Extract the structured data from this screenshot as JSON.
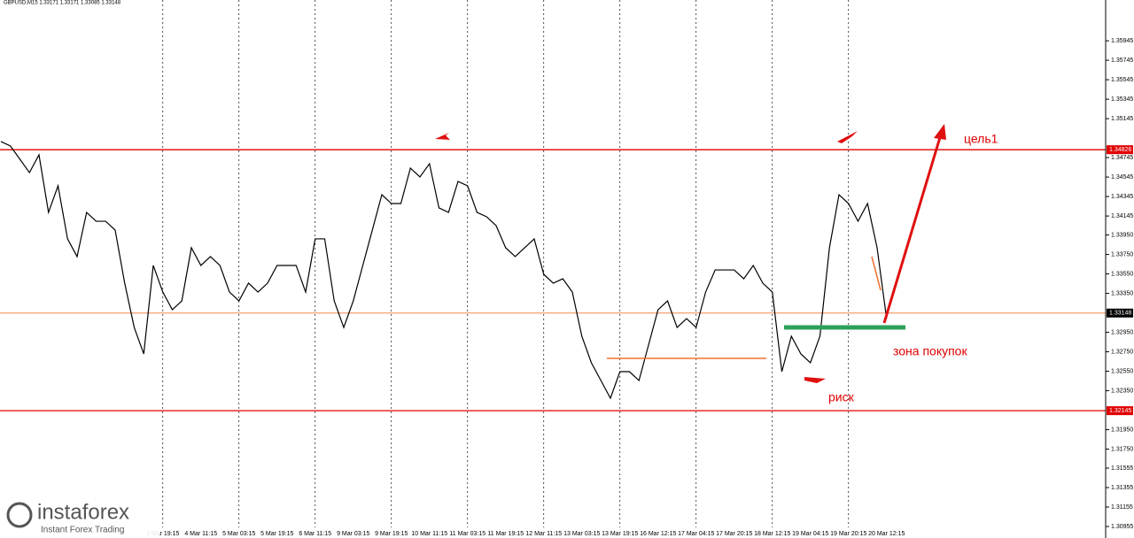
{
  "chart_data": {
    "type": "line",
    "title": "GBPUSD,M15  1.33171 1.33171 1.33085 1.33148",
    "watermark": "instaforex",
    "watermark_sub": "Instant Forex Trading",
    "annotations": {
      "target": "цель1",
      "buy_zone": "зона покупок",
      "risk": "риск"
    },
    "categories": [
      null,
      null,
      null,
      null,
      null,
      null,
      null,
      null,
      null,
      null,
      null,
      null,
      null,
      null,
      null,
      null,
      null,
      "3 Mar 19:15",
      null,
      null,
      null,
      "4 Mar 11:15",
      null,
      null,
      null,
      "5 Mar 03:15",
      null,
      null,
      null,
      "5 Mar 19:15",
      null,
      null,
      null,
      "6 Mar 11:15",
      null,
      null,
      null,
      "9 Mar 03:15",
      null,
      null,
      null,
      "9 Mar 19:15",
      null,
      null,
      null,
      "10 Mar 11:15",
      null,
      null,
      null,
      "11 Mar 03:15",
      null,
      null,
      null,
      "11 Mar 19:15",
      null,
      null,
      null,
      "12 Mar 11:15",
      null,
      null,
      null,
      "13 Mar 03:15",
      null,
      null,
      null,
      "13 Mar 19:15",
      null,
      null,
      null,
      "16 Mar 12:15",
      null,
      null,
      null,
      "17 Mar 04:15",
      null,
      null,
      null,
      "17 Mar 20:15",
      null,
      null,
      null,
      "18 Mar 12:15",
      null,
      null,
      null,
      "19 Mar 04:15",
      null,
      null,
      null,
      "19 Mar 20:15",
      null,
      null,
      null,
      "20 Mar 12:15"
    ],
    "series": [
      {
        "name": "GBPUSD",
        "color": "#000000",
        "values": [
          1.3491,
          1.34864,
          1.34728,
          1.34591,
          1.34773,
          1.34182,
          1.34455,
          1.3391,
          1.33728,
          1.34182,
          1.34091,
          1.34091,
          1.34,
          1.33455,
          1.33,
          1.32728,
          1.33637,
          1.33364,
          1.33182,
          1.33273,
          1.33819,
          1.33637,
          1.33728,
          1.33637,
          1.33364,
          1.33273,
          1.33455,
          1.33364,
          1.33455,
          1.33637,
          1.33637,
          1.33637,
          1.33364,
          1.3391,
          1.3391,
          1.33273,
          1.33,
          1.33273,
          1.33637,
          1.34,
          1.34364,
          1.34273,
          1.34273,
          1.34637,
          1.34546,
          1.34682,
          1.34228,
          1.34182,
          1.345,
          1.34455,
          1.34182,
          1.34137,
          1.34046,
          1.33819,
          1.33728,
          1.33819,
          1.3391,
          1.33546,
          1.33455,
          1.335,
          1.33364,
          1.3291,
          1.32637,
          1.32455,
          1.32273,
          1.32546,
          1.32546,
          1.32455,
          1.32819,
          1.33182,
          1.33273,
          1.33,
          1.33091,
          1.33,
          1.33364,
          1.33591,
          1.33591,
          1.33591,
          1.335,
          1.33637,
          1.33455,
          1.33364,
          1.32546,
          1.3291,
          1.32728,
          1.32637,
          1.3291,
          1.33819,
          1.34364,
          1.34273,
          1.34091,
          1.34273,
          1.33819,
          1.33091
        ]
      }
    ],
    "levels": [
      {
        "value": 1.34826,
        "color": "#e00000",
        "label_fill": "#e00000"
      },
      {
        "value": 1.33148,
        "color": "#f0a070",
        "label_fill": "#000000"
      },
      {
        "value": 1.32145,
        "color": "#e00000",
        "label_fill": "#e00000"
      }
    ],
    "ylim": [
      1.30837,
      1.36364
    ],
    "yticks": [
      1.35945,
      1.35745,
      1.35545,
      1.35345,
      1.35145,
      1.34745,
      1.34545,
      1.34345,
      1.34145,
      {
        "value": 1.3395,
        "label": "1.33950"
      },
      {
        "value": 1.3375,
        "label": "1.33750"
      },
      {
        "value": 1.3355,
        "label": "1.33550"
      },
      {
        "value": 1.3335,
        "label": "1.33350"
      },
      {
        "value": 1.3295,
        "label": "1.32950"
      },
      {
        "value": 1.3275,
        "label": "1.32750"
      },
      {
        "value": 1.3255,
        "label": "1.32550"
      },
      {
        "value": 1.3235,
        "label": "1.32350"
      },
      {
        "value": 1.3195,
        "label": "1.31950"
      },
      {
        "value": 1.3175,
        "label": "1.31750"
      },
      1.31555,
      1.31355,
      1.31155,
      1.30955
    ],
    "grid": true
  }
}
